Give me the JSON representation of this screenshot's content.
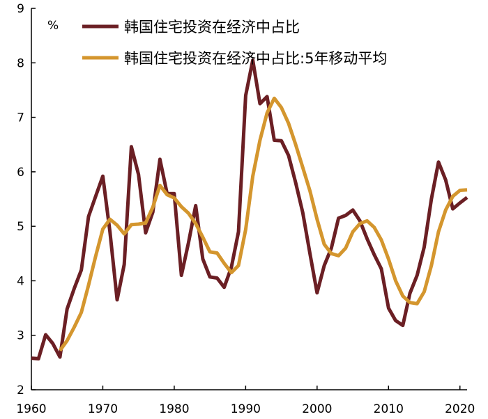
{
  "chart_data": {
    "type": "line",
    "title": "",
    "xlabel": "",
    "ylabel": "",
    "unit_label": "%",
    "xlim": [
      1960,
      2021
    ],
    "ylim": [
      2,
      9
    ],
    "x_ticks": [
      1960,
      1970,
      1980,
      1990,
      2000,
      2010,
      2020
    ],
    "y_ticks": [
      2,
      3,
      4,
      5,
      6,
      7,
      8,
      9
    ],
    "grid": false,
    "legend_position": "top",
    "series": [
      {
        "name": "韩国住宅投资在经济中占比",
        "color": "#6b1f24",
        "x": [
          1960,
          1961,
          1962,
          1963,
          1964,
          1965,
          1966,
          1967,
          1968,
          1969,
          1970,
          1971,
          1972,
          1973,
          1974,
          1975,
          1976,
          1977,
          1978,
          1979,
          1980,
          1981,
          1982,
          1983,
          1984,
          1985,
          1986,
          1987,
          1988,
          1989,
          1990,
          1991,
          1992,
          1993,
          1994,
          1995,
          1996,
          1997,
          1998,
          1999,
          2000,
          2001,
          2002,
          2003,
          2004,
          2005,
          2006,
          2007,
          2008,
          2009,
          2010,
          2011,
          2012,
          2013,
          2014,
          2015,
          2016,
          2017,
          2018,
          2019,
          2020,
          2021
        ],
        "values": [
          2.58,
          2.57,
          3.01,
          2.85,
          2.6,
          3.48,
          3.86,
          4.2,
          5.18,
          5.55,
          5.92,
          4.9,
          3.65,
          4.3,
          6.46,
          5.95,
          4.88,
          5.26,
          6.23,
          5.6,
          5.6,
          4.1,
          4.7,
          5.38,
          4.4,
          4.07,
          4.05,
          3.88,
          4.25,
          4.9,
          7.4,
          8.05,
          7.25,
          7.38,
          6.58,
          6.57,
          6.3,
          5.8,
          5.25,
          4.5,
          3.78,
          4.28,
          4.6,
          5.15,
          5.2,
          5.3,
          5.1,
          4.77,
          4.48,
          4.22,
          3.5,
          3.27,
          3.18,
          3.77,
          4.1,
          4.62,
          5.5,
          6.18,
          5.85,
          5.32,
          5.43,
          5.53
        ]
      },
      {
        "name": "韩国住宅投资在经济中占比:5年移动平均",
        "color": "#d4962e",
        "x": [
          1964,
          1965,
          1966,
          1967,
          1968,
          1969,
          1970,
          1971,
          1972,
          1973,
          1974,
          1975,
          1976,
          1977,
          1978,
          1979,
          1980,
          1981,
          1982,
          1983,
          1984,
          1985,
          1986,
          1987,
          1988,
          1989,
          1990,
          1991,
          1992,
          1993,
          1994,
          1995,
          1996,
          1997,
          1998,
          1999,
          2000,
          2001,
          2002,
          2003,
          2004,
          2005,
          2006,
          2007,
          2008,
          2009,
          2010,
          2011,
          2012,
          2013,
          2014,
          2015,
          2016,
          2017,
          2018,
          2019,
          2020,
          2021
        ],
        "values": [
          2.72,
          2.9,
          3.15,
          3.42,
          3.92,
          4.45,
          4.95,
          5.13,
          5.02,
          4.86,
          5.03,
          5.04,
          5.06,
          5.35,
          5.75,
          5.58,
          5.52,
          5.36,
          5.24,
          5.05,
          4.8,
          4.53,
          4.51,
          4.32,
          4.15,
          4.28,
          4.94,
          5.92,
          6.58,
          7.08,
          7.35,
          7.18,
          6.89,
          6.5,
          6.08,
          5.65,
          5.13,
          4.67,
          4.5,
          4.46,
          4.6,
          4.9,
          5.05,
          5.1,
          4.98,
          4.75,
          4.4,
          4.0,
          3.72,
          3.6,
          3.58,
          3.8,
          4.28,
          4.9,
          5.3,
          5.55,
          5.66,
          5.67
        ]
      }
    ]
  }
}
